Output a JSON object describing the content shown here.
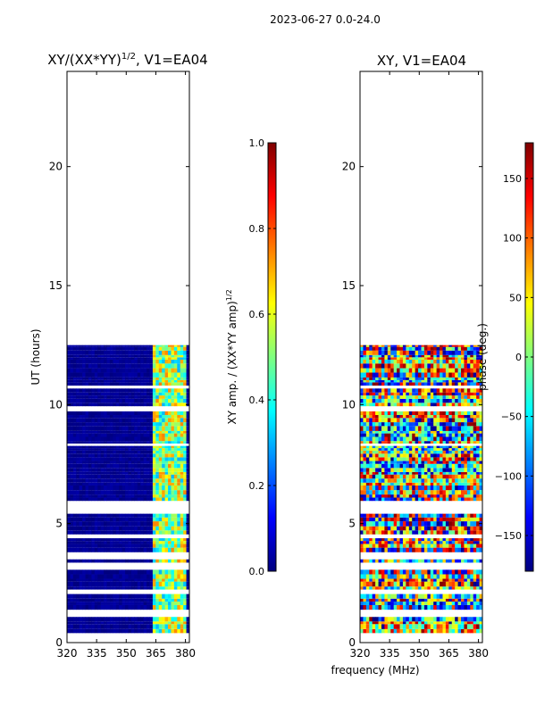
{
  "suptitle": "2023-06-27 0.0-24.0",
  "shared_xlabel": "frequency (MHz)",
  "colormap": [
    "#00007f",
    "#0000ff",
    "#007fff",
    "#00ffff",
    "#7fff7f",
    "#ffff00",
    "#ff7f00",
    "#ff0000",
    "#7f0000"
  ],
  "blank_color": "#ffffff",
  "chart_data": [
    {
      "type": "heatmap",
      "title_main": "XY/(XX*YY)",
      "title_sup": "1/2",
      "title_tail": ", V1=EA04",
      "xlabel": "",
      "ylabel": "UT (hours)",
      "xlim": [
        320,
        382
      ],
      "ylim": [
        0,
        24
      ],
      "xticks": [
        320,
        335,
        350,
        365,
        380
      ],
      "yticks": [
        0,
        5,
        10,
        15,
        20
      ],
      "data_ut_range": [
        0.4,
        12.5
      ],
      "hot_freq_range": [
        362,
        380
      ],
      "colorbar": {
        "label_main": "XY amp. / (XX*YY amp)",
        "label_sup": "1/2",
        "range": [
          0.0,
          1.0
        ],
        "ticks": [
          0.0,
          0.2,
          0.4,
          0.6,
          0.8,
          1.0
        ],
        "tick_labels": [
          "0.0",
          "0.2",
          "0.4",
          "0.6",
          "0.8",
          "1.0"
        ]
      }
    },
    {
      "type": "heatmap",
      "title_main": "XY, V1=EA04",
      "xlabel": "frequency (MHz)",
      "ylabel": "",
      "xlim": [
        320,
        382
      ],
      "ylim": [
        0,
        24
      ],
      "xticks": [
        320,
        335,
        350,
        365,
        380
      ],
      "yticks": [
        0,
        5,
        10,
        15,
        20
      ],
      "data_ut_range": [
        0.4,
        12.5
      ],
      "colorbar": {
        "label_main": "phase (deg.)",
        "range": [
          -180,
          180
        ],
        "ticks": [
          -150,
          -100,
          -50,
          0,
          50,
          100,
          150
        ],
        "tick_labels": [
          "−150",
          "−100",
          "−50",
          "0",
          "50",
          "100",
          "150"
        ]
      }
    }
  ]
}
